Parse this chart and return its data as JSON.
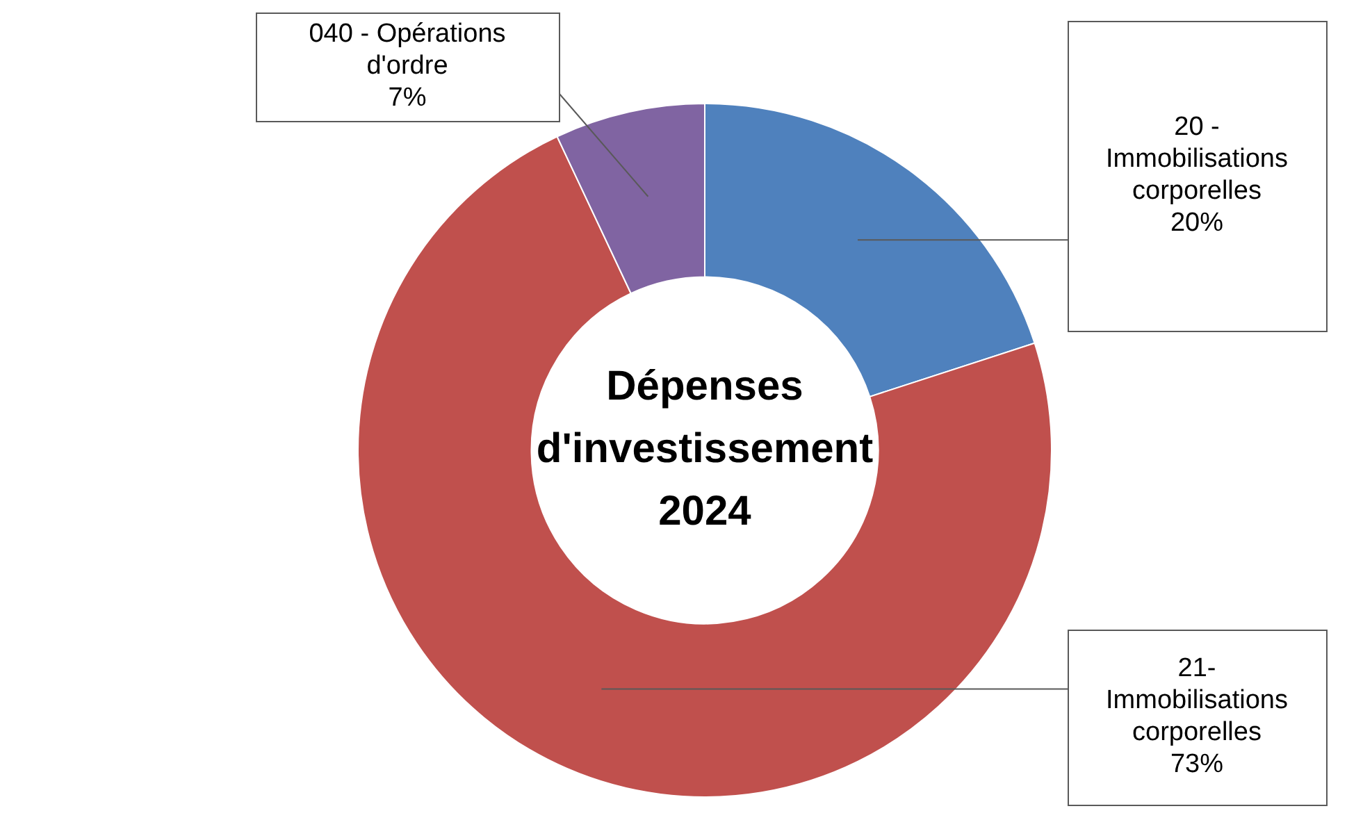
{
  "chart_data": {
    "type": "donut",
    "title": "Dépenses d'investissement 2024",
    "categories": [
      "20 - Immobilisations corporelles",
      "21- Immobilisations corporelles",
      "040 - Opérations d'ordre"
    ],
    "values": [
      20,
      73,
      7
    ],
    "value_labels": [
      "20%",
      "73%",
      "7%"
    ],
    "colors": [
      "#4f81bd",
      "#c0504d",
      "#8064a2"
    ],
    "legend": false
  }
}
